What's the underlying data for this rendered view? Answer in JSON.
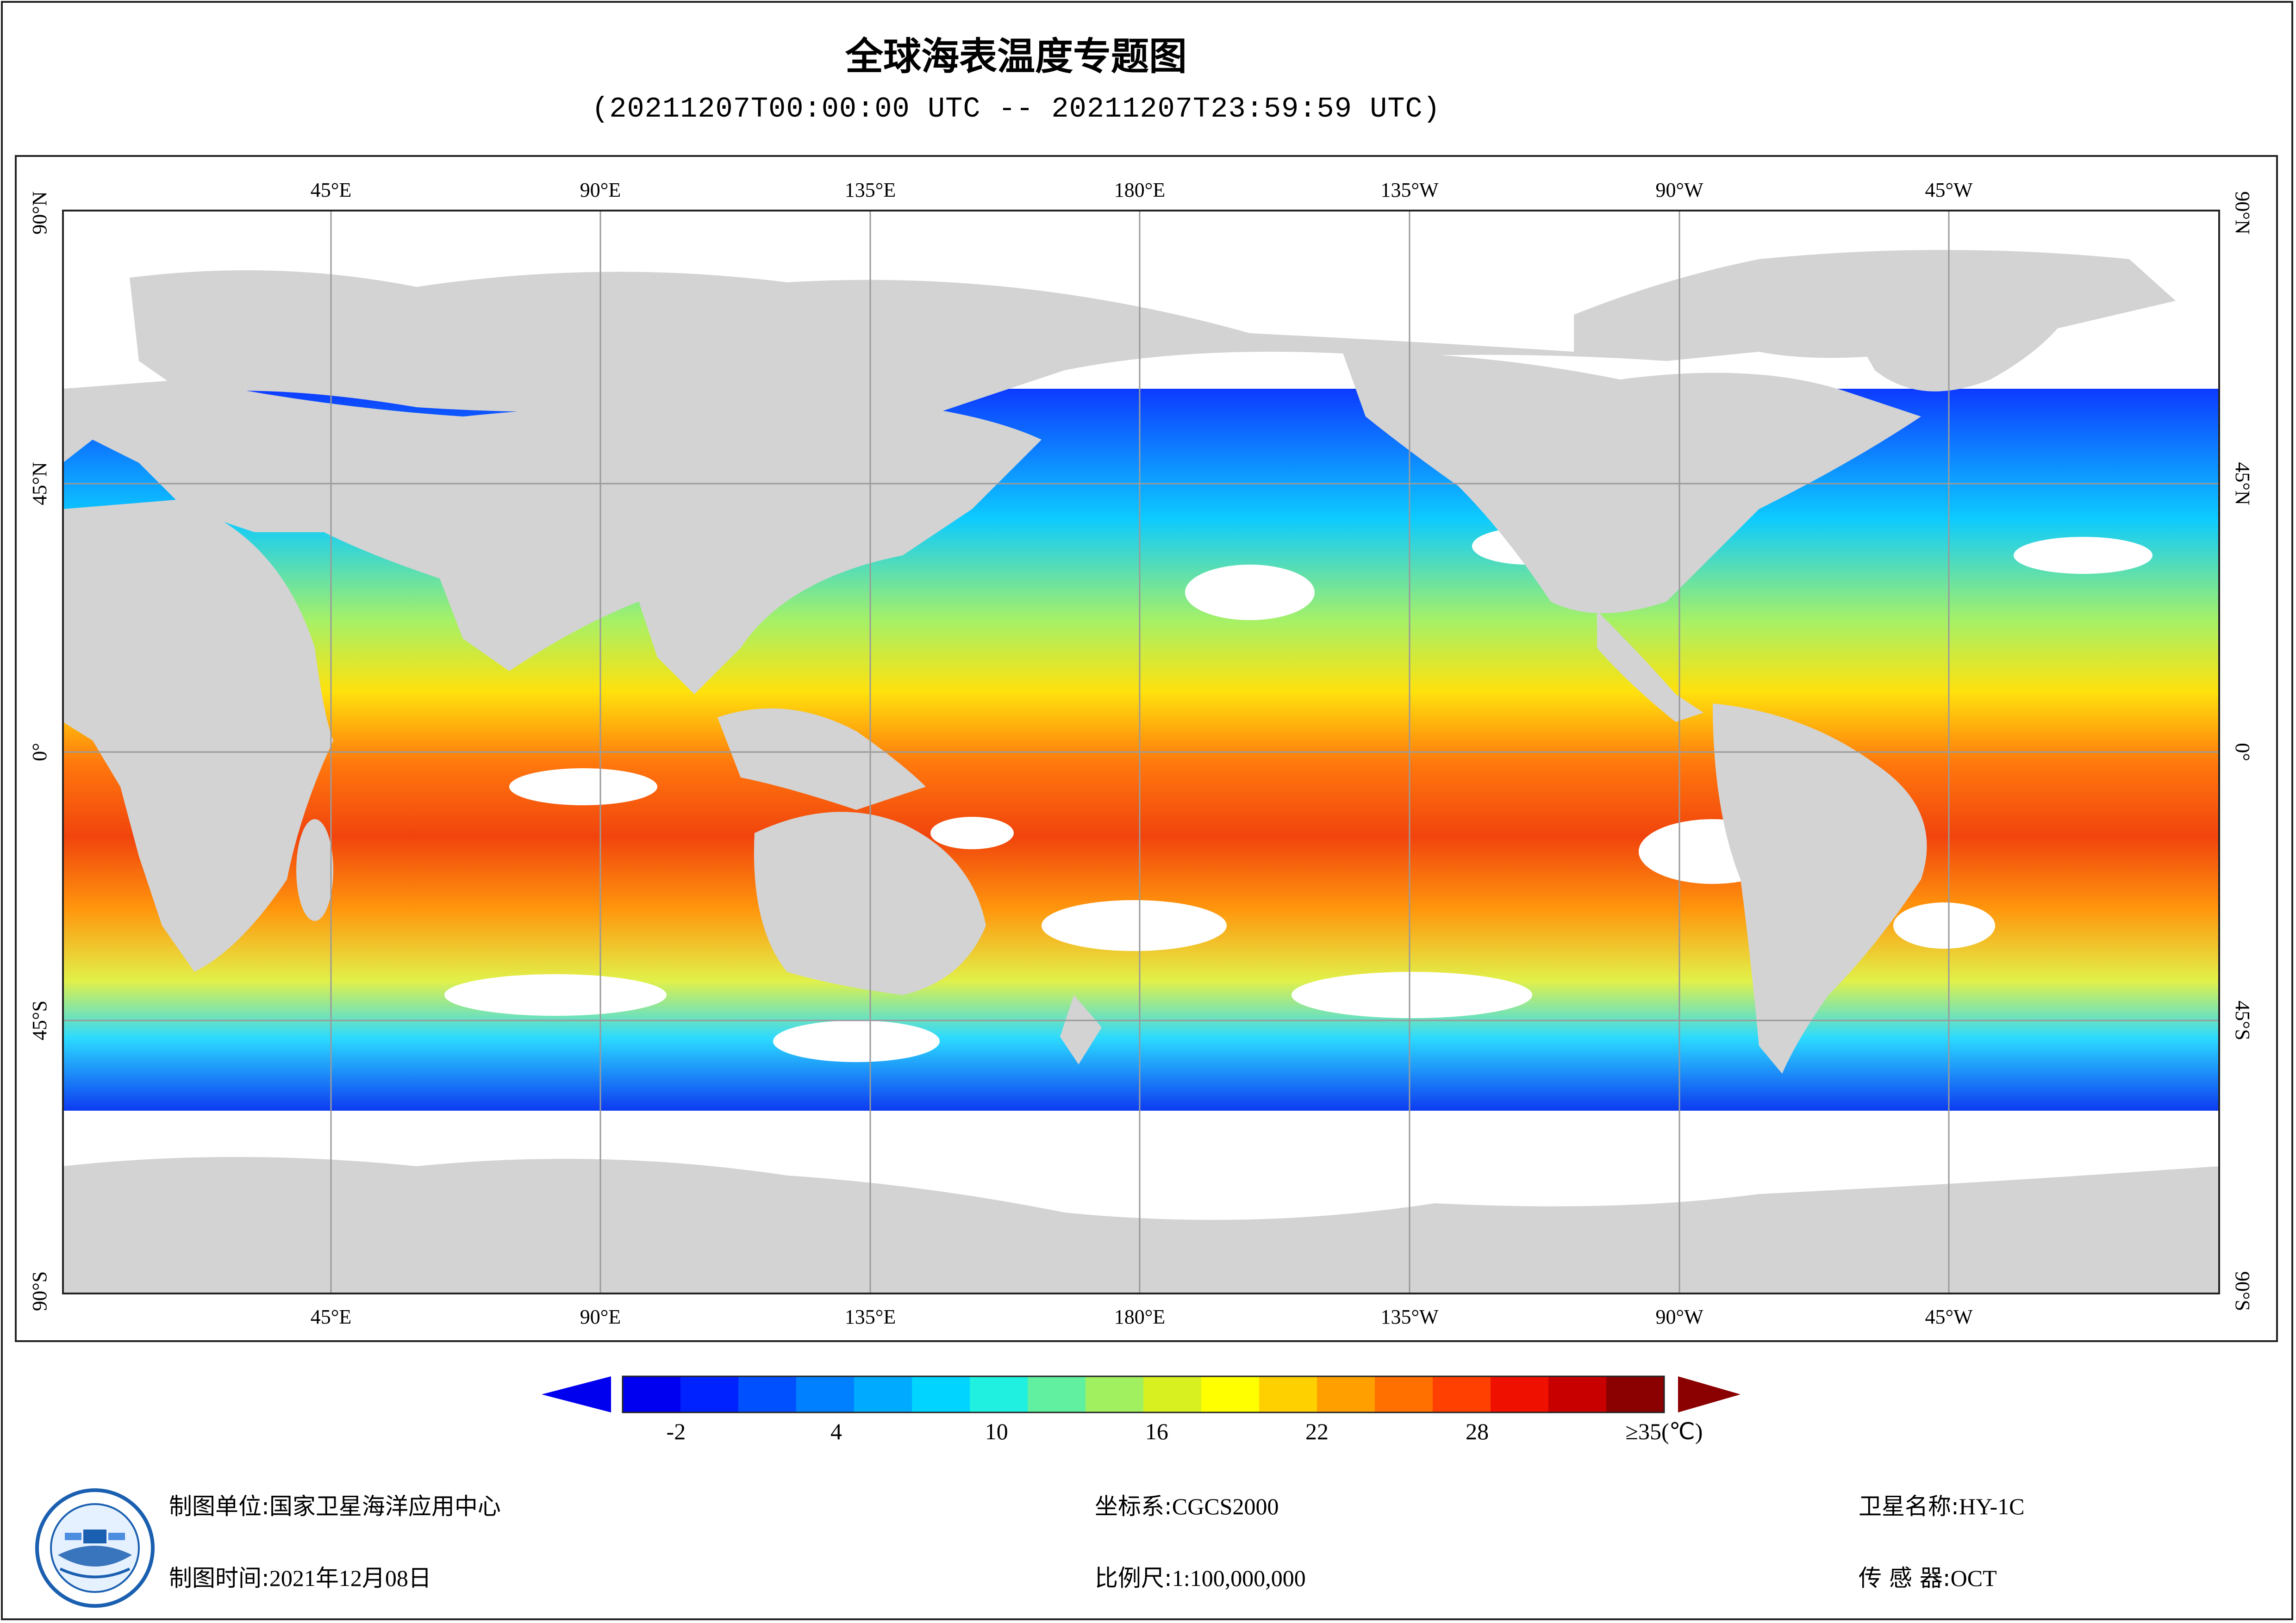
{
  "title": "全球海表温度专题图",
  "subtitle": "(20211207T00:00:00 UTC -- 20211207T23:59:59 UTC)",
  "map": {
    "top_labels": [
      "45°E",
      "90°E",
      "135°E",
      "180°E",
      "135°W",
      "90°W",
      "45°W"
    ],
    "bottom_labels": [
      "45°E",
      "90°E",
      "135°E",
      "180°E",
      "135°W",
      "90°W",
      "45°W"
    ],
    "left_labels": [
      "90°N",
      "45°N",
      "0°",
      "45°S",
      "90°S"
    ],
    "right_labels": [
      "90°N",
      "45°N",
      "0°",
      "45°S",
      "90°S"
    ],
    "land_color": "#d3d3d3",
    "grid_color": "#9a9a9a"
  },
  "legend": {
    "ticks": [
      "-2",
      "4",
      "10",
      "16",
      "22",
      "28",
      "≥35(℃)"
    ],
    "tick_values": [
      -2,
      4,
      10,
      16,
      22,
      28,
      35
    ],
    "min": -4,
    "max": 35,
    "under_color": "#0000ee",
    "over_color": "#8b0000",
    "colors": [
      "#0000f0",
      "#0022ff",
      "#0050ff",
      "#0080ff",
      "#00aaff",
      "#00d4ff",
      "#20f0e0",
      "#60f0a0",
      "#a0f060",
      "#d8f020",
      "#ffff00",
      "#ffd000",
      "#ffa000",
      "#ff7000",
      "#ff4000",
      "#f01000",
      "#c80000",
      "#8b0000"
    ]
  },
  "footer": {
    "unit_label": "制图单位:",
    "unit_value": "国家卫星海洋应用中心",
    "time_label": "制图时间:",
    "time_value": "2021年12月08日",
    "crs_label": "坐标系:",
    "crs_value": "CGCS2000",
    "scale_label": "比例尺:",
    "scale_value": "1:100,000,000",
    "sat_label": "卫星名称:",
    "sat_value": "HY-1C",
    "sensor_label": "传 感 器:",
    "sensor_value": "OCT"
  }
}
